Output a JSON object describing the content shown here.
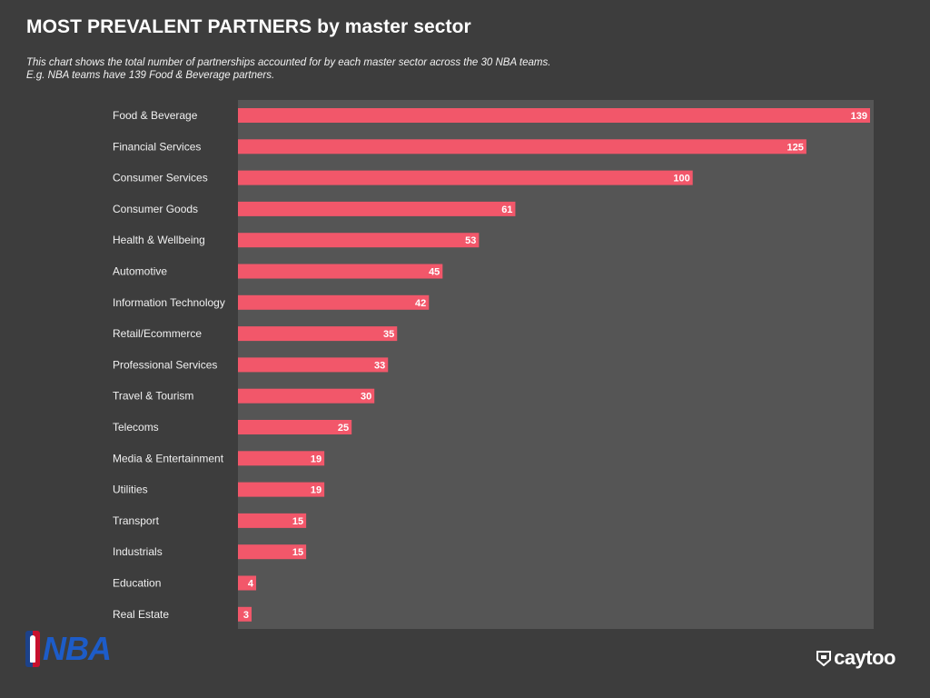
{
  "header": {
    "title": "MOST PREVALENT PARTNERS by master sector",
    "subtitle_line1": "This chart shows the total number of partnerships accounted for by each master sector across the 30 NBA teams.",
    "subtitle_line2": "E.g. NBA teams have 139 Food & Beverage partners."
  },
  "logos": {
    "left": "NBA",
    "right": "caytoo"
  },
  "colors": {
    "background": "#3d3d3d",
    "panel": "#555555",
    "bar": "#f2576a"
  },
  "chart_data": {
    "type": "bar",
    "orientation": "horizontal",
    "title": "MOST PREVALENT PARTNERS by master sector",
    "xlabel": "",
    "ylabel": "",
    "xlim": [
      0,
      139
    ],
    "grid": false,
    "legend": "none",
    "data_labels": true,
    "categories": [
      "Food & Beverage",
      "Financial Services",
      "Consumer Services",
      "Consumer Goods",
      "Health & Wellbeing",
      "Automotive",
      "Information Technology",
      "Retail/Ecommerce",
      "Professional Services",
      "Travel & Tourism",
      "Telecoms",
      "Media & Entertainment",
      "Utilities",
      "Transport",
      "Industrials",
      "Education",
      "Real Estate"
    ],
    "values": [
      139,
      125,
      100,
      61,
      53,
      45,
      42,
      35,
      33,
      30,
      25,
      19,
      19,
      15,
      15,
      4,
      3
    ]
  }
}
